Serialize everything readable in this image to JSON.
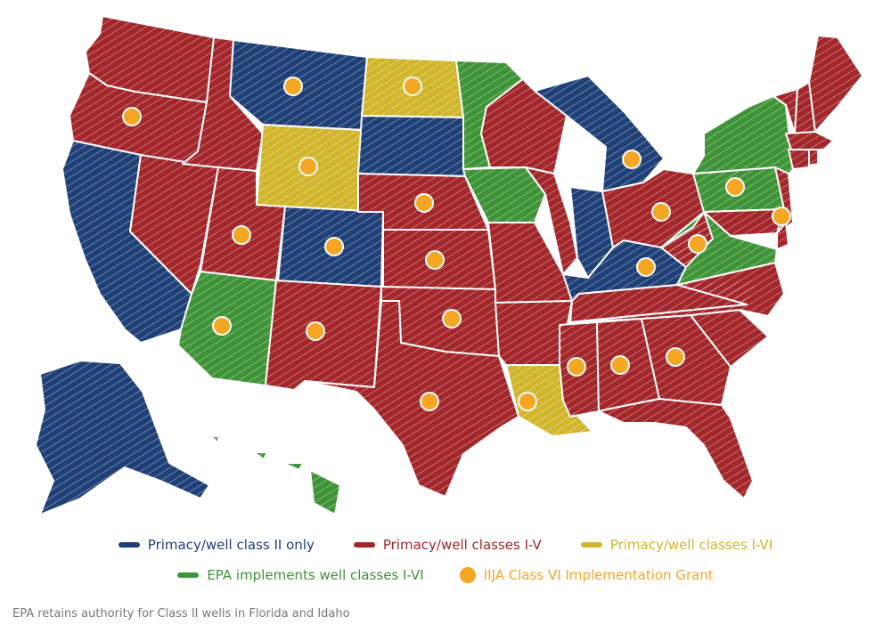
{
  "colors": {
    "class2": "#1f3f77",
    "classes15": "#a3262a",
    "classes16": "#d1b62c",
    "epa": "#3f9437",
    "grant": "#f5a623",
    "border": "#ffffff"
  },
  "legend": [
    {
      "key": "class2",
      "label": "Primacy/well class II only"
    },
    {
      "key": "classes15",
      "label": "Primacy/well classes I-V"
    },
    {
      "key": "classes16",
      "label": "Primacy/well classes I-VI"
    },
    {
      "key": "epa",
      "label": "EPA implements well classes I-VI"
    },
    {
      "key": "grant",
      "label": "IIJA Class VI Implementation Grant"
    }
  ],
  "footnote": "EPA retains authority for Class II wells in Florida and Idaho",
  "states": [
    {
      "id": "WA",
      "status": "classes15",
      "grant": false
    },
    {
      "id": "OR",
      "status": "classes15",
      "grant": true
    },
    {
      "id": "CA",
      "status": "class2",
      "grant": false
    },
    {
      "id": "NV",
      "status": "classes15",
      "grant": false
    },
    {
      "id": "ID",
      "status": "classes15",
      "grant": false
    },
    {
      "id": "MT",
      "status": "class2",
      "grant": true
    },
    {
      "id": "WY",
      "status": "classes16",
      "grant": true
    },
    {
      "id": "UT",
      "status": "classes15",
      "grant": true
    },
    {
      "id": "AZ",
      "status": "epa",
      "grant": true
    },
    {
      "id": "CO",
      "status": "class2",
      "grant": true
    },
    {
      "id": "NM",
      "status": "classes15",
      "grant": true
    },
    {
      "id": "ND",
      "status": "classes16",
      "grant": true
    },
    {
      "id": "SD",
      "status": "class2",
      "grant": false
    },
    {
      "id": "NE",
      "status": "classes15",
      "grant": true
    },
    {
      "id": "KS",
      "status": "classes15",
      "grant": true
    },
    {
      "id": "OK",
      "status": "classes15",
      "grant": true
    },
    {
      "id": "TX",
      "status": "classes15",
      "grant": true
    },
    {
      "id": "MN",
      "status": "epa",
      "grant": false
    },
    {
      "id": "IA",
      "status": "epa",
      "grant": false
    },
    {
      "id": "MO",
      "status": "classes15",
      "grant": false
    },
    {
      "id": "AR",
      "status": "classes15",
      "grant": false
    },
    {
      "id": "LA",
      "status": "classes16",
      "grant": true
    },
    {
      "id": "WI",
      "status": "classes15",
      "grant": false
    },
    {
      "id": "IL",
      "status": "classes15",
      "grant": false
    },
    {
      "id": "MI",
      "status": "class2",
      "grant": true
    },
    {
      "id": "IN",
      "status": "class2",
      "grant": false
    },
    {
      "id": "OH",
      "status": "classes15",
      "grant": true
    },
    {
      "id": "KY",
      "status": "class2",
      "grant": true
    },
    {
      "id": "TN",
      "status": "classes15",
      "grant": false
    },
    {
      "id": "MS",
      "status": "classes15",
      "grant": true
    },
    {
      "id": "AL",
      "status": "classes15",
      "grant": true
    },
    {
      "id": "GA",
      "status": "classes15",
      "grant": true
    },
    {
      "id": "FL",
      "status": "classes15",
      "grant": false
    },
    {
      "id": "SC",
      "status": "classes15",
      "grant": false
    },
    {
      "id": "NC",
      "status": "classes15",
      "grant": false
    },
    {
      "id": "VA",
      "status": "epa",
      "grant": false
    },
    {
      "id": "WV",
      "status": "classes15",
      "grant": true
    },
    {
      "id": "PA",
      "status": "epa",
      "grant": true
    },
    {
      "id": "NY",
      "status": "epa",
      "grant": false
    },
    {
      "id": "NJ",
      "status": "classes15",
      "grant": true
    },
    {
      "id": "MD",
      "status": "classes15",
      "grant": false
    },
    {
      "id": "DE",
      "status": "classes15",
      "grant": false
    },
    {
      "id": "VT",
      "status": "classes15",
      "grant": false
    },
    {
      "id": "NH",
      "status": "classes15",
      "grant": false
    },
    {
      "id": "ME",
      "status": "classes15",
      "grant": false
    },
    {
      "id": "MA",
      "status": "classes15",
      "grant": false
    },
    {
      "id": "CT",
      "status": "classes15",
      "grant": false
    },
    {
      "id": "RI",
      "status": "classes15",
      "grant": false
    },
    {
      "id": "AK",
      "status": "class2",
      "grant": false
    },
    {
      "id": "HI",
      "status": "epa",
      "grant": false
    }
  ]
}
